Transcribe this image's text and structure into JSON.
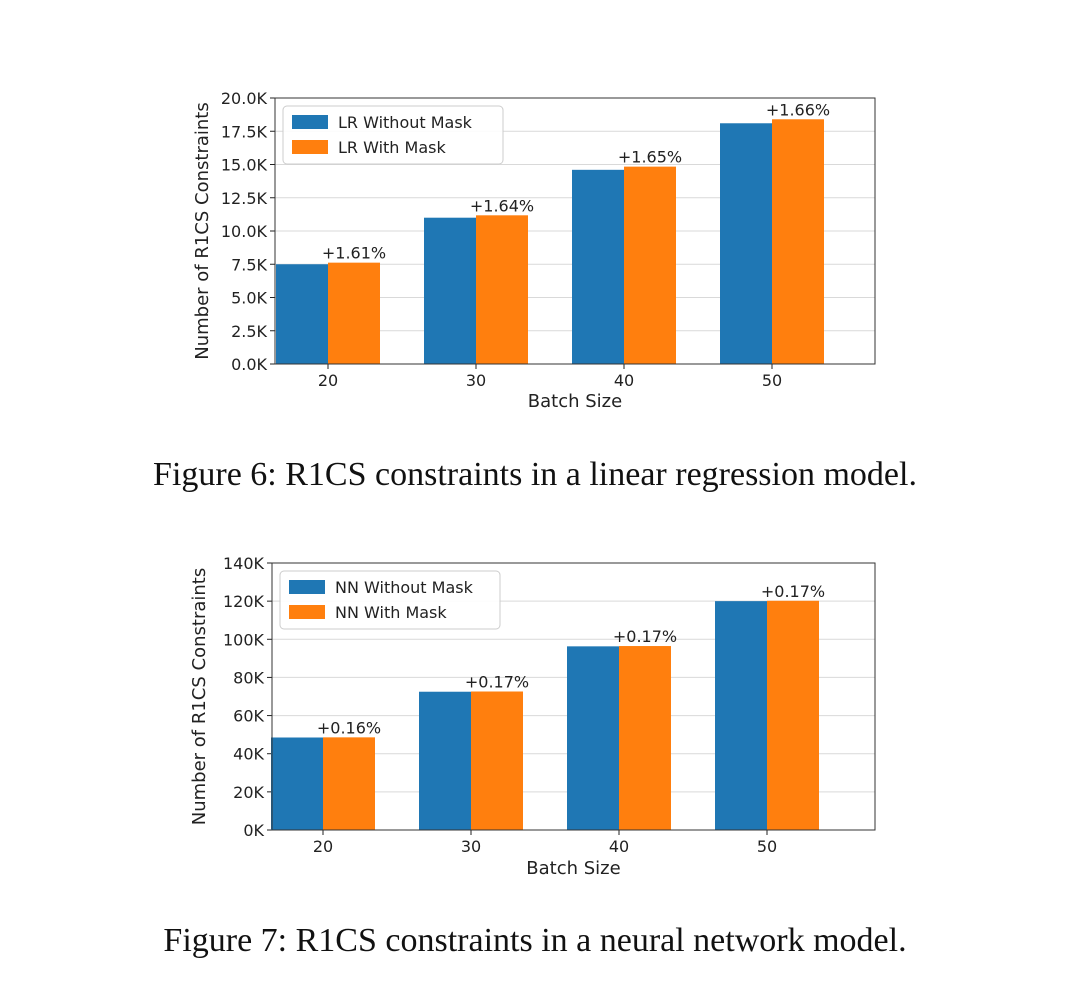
{
  "chart_data": [
    {
      "type": "bar",
      "title": "",
      "xlabel": "Batch Size",
      "ylabel": "Number of R1CS Constraints",
      "categories": [
        "20",
        "30",
        "40",
        "50"
      ],
      "series": [
        {
          "name": "LR Without Mask",
          "color": "#1f77b4",
          "values": [
            7500,
            11000,
            14600,
            18100
          ]
        },
        {
          "name": "LR With Mask",
          "color": "#ff7f0e",
          "values": [
            7620,
            11180,
            14840,
            18400
          ]
        }
      ],
      "annotations": [
        "+1.61%",
        "+1.64%",
        "+1.65%",
        "+1.66%"
      ],
      "ylim": [
        0,
        20000
      ],
      "yticks": [
        0,
        2500,
        5000,
        7500,
        10000,
        12500,
        15000,
        17500,
        20000
      ],
      "ytick_labels": [
        "0.0K",
        "2.5K",
        "5.0K",
        "7.5K",
        "10.0K",
        "12.5K",
        "15.0K",
        "17.5K",
        "20.0K"
      ],
      "legend": "top-left",
      "grid": "horizontal",
      "caption": "Figure 6: R1CS constraints in a linear regression model."
    },
    {
      "type": "bar",
      "title": "",
      "xlabel": "Batch Size",
      "ylabel": "Number of R1CS Constraints",
      "categories": [
        "20",
        "30",
        "40",
        "50"
      ],
      "series": [
        {
          "name": "NN Without Mask",
          "color": "#1f77b4",
          "values": [
            48500,
            72500,
            96300,
            120000
          ]
        },
        {
          "name": "NN With Mask",
          "color": "#ff7f0e",
          "values": [
            48580,
            72620,
            96460,
            120200
          ]
        }
      ],
      "annotations": [
        "+0.16%",
        "+0.17%",
        "+0.17%",
        "+0.17%"
      ],
      "ylim": [
        0,
        140000
      ],
      "yticks": [
        0,
        20000,
        40000,
        60000,
        80000,
        100000,
        120000,
        140000
      ],
      "ytick_labels": [
        "0K",
        "20K",
        "40K",
        "60K",
        "80K",
        "100K",
        "120K",
        "140K"
      ],
      "legend": "top-left",
      "grid": "horizontal",
      "caption": "Figure 7: R1CS constraints in a neural network model."
    }
  ]
}
